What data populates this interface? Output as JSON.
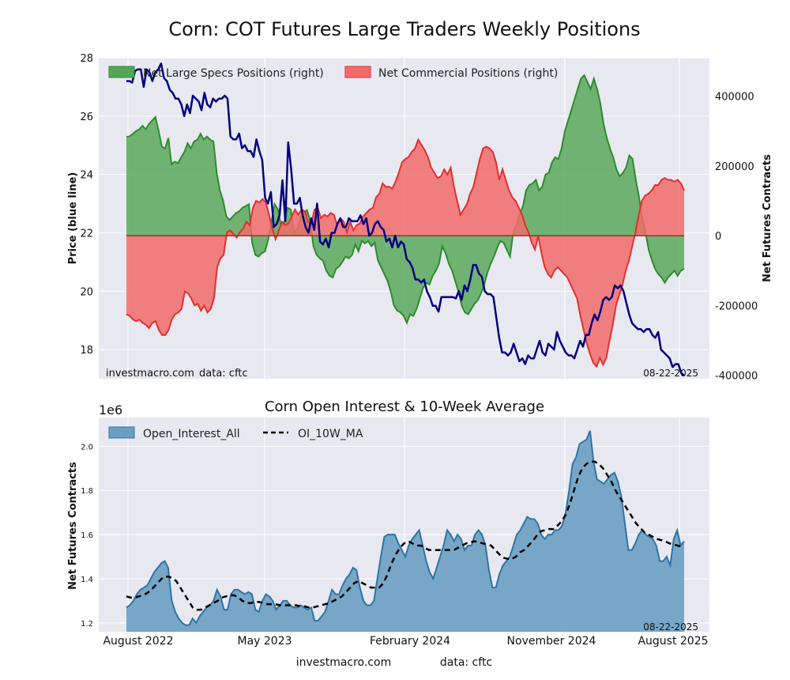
{
  "figure": {
    "title": "Corn: COT Futures Large Traders Weekly Positions",
    "footer_left": "investmacro.com",
    "footer_right": "data: cftc",
    "x_tick_labels": [
      "August 2022",
      "May 2023",
      "February 2024",
      "November 2024",
      "August 2025"
    ]
  },
  "colors": {
    "background": "#e8e8f0",
    "grid": "#ffffff",
    "specs_fill": "#56a656",
    "specs_line": "#2e8b2e",
    "commercial_fill": "#f26b6b",
    "commercial_line": "#e0302f",
    "price_line": "#000080",
    "oi_fill": "#6a9ec2",
    "oi_line": "#2f74a6",
    "ma_line": "#000000"
  },
  "chart_data": [
    {
      "type": "area",
      "title": "Corn: COT Futures Large Traders Weekly Positions",
      "ylabel_left": "Price (blue line)",
      "ylabel_right": "Net Futures Contracts",
      "ylim_left": [
        17.0,
        28.0
      ],
      "ylim_right": [
        -410000,
        510000
      ],
      "left_ticks": [
        "18",
        "20",
        "22",
        "24",
        "26",
        "28"
      ],
      "right_ticks": [
        "-400000",
        "-200000",
        "0",
        "200000",
        "400000"
      ],
      "legend_position": "top-left",
      "watermark_left": "investmacro.com",
      "watermark_data": "data: cftc",
      "date_label": "08-22-2025",
      "x_range": [
        "2022-07-26",
        "2025-08-19"
      ],
      "series": [
        {
          "name": "Net Large Specs Positions (right)",
          "style": "area",
          "values": [
            283000,
            285000,
            292000,
            300000,
            305000,
            315000,
            305000,
            320000,
            330000,
            340000,
            300000,
            255000,
            250000,
            280000,
            205000,
            212000,
            208000,
            225000,
            240000,
            265000,
            250000,
            270000,
            275000,
            292000,
            275000,
            284000,
            275000,
            270000,
            180000,
            130000,
            100000,
            55000,
            45000,
            55000,
            65000,
            70000,
            80000,
            85000,
            90000,
            -20000,
            -55000,
            -60000,
            -50000,
            -45000,
            -10000,
            40000,
            90000,
            75000,
            25000,
            40000,
            80000,
            75000,
            8000,
            20000,
            50000,
            65000,
            73000,
            45000,
            -30000,
            -55000,
            -65000,
            -72000,
            -100000,
            -115000,
            -120000,
            -95000,
            -88000,
            -75000,
            -60000,
            -65000,
            -55000,
            -25000,
            -45000,
            -15000,
            -22000,
            -15000,
            -30000,
            -20000,
            -70000,
            -90000,
            -110000,
            -130000,
            -160000,
            -200000,
            -215000,
            -220000,
            -230000,
            -250000,
            -225000,
            -230000,
            -210000,
            -180000,
            -150000,
            -135000,
            -140000,
            -115000,
            -100000,
            -80000,
            -30000,
            -50000,
            -80000,
            -100000,
            -130000,
            -160000,
            -200000,
            -220000,
            -225000,
            -210000,
            -195000,
            -185000,
            -165000,
            -140000,
            -105000,
            -80000,
            -60000,
            -35000,
            -15000,
            -20000,
            -40000,
            -60000,
            10000,
            30000,
            60000,
            85000,
            130000,
            145000,
            150000,
            160000,
            130000,
            140000,
            175000,
            180000,
            210000,
            225000,
            220000,
            250000,
            300000,
            330000,
            360000,
            390000,
            420000,
            450000,
            460000,
            440000,
            420000,
            450000,
            420000,
            380000,
            320000,
            280000,
            250000,
            225000,
            190000,
            170000,
            180000,
            195000,
            230000,
            220000,
            160000,
            110000,
            50000,
            10000,
            -40000,
            -70000,
            -95000,
            -110000,
            -120000,
            -135000,
            -120000,
            -110000,
            -100000,
            -115000,
            -100000,
            -95000
          ]
        },
        {
          "name": "Net Commercial Positions (right)",
          "style": "area",
          "values": [
            -225000,
            -230000,
            -240000,
            -245000,
            -240000,
            -250000,
            -255000,
            -265000,
            -250000,
            -245000,
            -270000,
            -285000,
            -285000,
            -270000,
            -240000,
            -225000,
            -220000,
            -210000,
            -160000,
            -165000,
            -180000,
            -200000,
            -195000,
            -215000,
            -200000,
            -220000,
            -210000,
            -180000,
            -90000,
            -65000,
            -55000,
            10000,
            15000,
            5000,
            -5000,
            10000,
            20000,
            40000,
            30000,
            80000,
            100000,
            95000,
            105000,
            95000,
            60000,
            20000,
            -10000,
            15000,
            40000,
            30000,
            35000,
            55000,
            75000,
            60000,
            75000,
            70000,
            40000,
            35000,
            75000,
            80000,
            50000,
            60000,
            55000,
            65000,
            60000,
            30000,
            50000,
            40000,
            10000,
            40000,
            15000,
            30000,
            35000,
            55000,
            65000,
            75000,
            80000,
            110000,
            120000,
            150000,
            140000,
            140000,
            135000,
            155000,
            180000,
            210000,
            220000,
            225000,
            240000,
            250000,
            275000,
            260000,
            245000,
            225000,
            195000,
            180000,
            165000,
            170000,
            190000,
            175000,
            195000,
            140000,
            100000,
            60000,
            75000,
            90000,
            120000,
            140000,
            180000,
            220000,
            250000,
            255000,
            250000,
            240000,
            210000,
            160000,
            190000,
            160000,
            130000,
            110000,
            100000,
            80000,
            60000,
            30000,
            10000,
            -20000,
            -40000,
            0,
            -50000,
            -90000,
            -110000,
            -120000,
            -100000,
            -90000,
            -100000,
            -110000,
            -120000,
            -140000,
            -160000,
            -180000,
            -230000,
            -270000,
            -310000,
            -340000,
            -365000,
            -375000,
            -350000,
            -370000,
            -350000,
            -300000,
            -255000,
            -200000,
            -170000,
            -140000,
            -100000,
            -70000,
            -30000,
            10000,
            60000,
            100000,
            115000,
            120000,
            130000,
            145000,
            145000,
            160000,
            165000,
            160000,
            160000,
            155000,
            160000,
            150000,
            130000
          ]
        },
        {
          "name": "Price",
          "axis": "left",
          "style": "line",
          "values": [
            27.2,
            27.2,
            27.15,
            27.55,
            27.6,
            27.6,
            27.0,
            27.6,
            27.5,
            27.2,
            27.5,
            27.6,
            27.8,
            27.3,
            27.2,
            26.9,
            26.8,
            26.6,
            26.6,
            26.4,
            26.0,
            26.4,
            26.1,
            26.7,
            26.6,
            26.5,
            26.2,
            26.8,
            26.4,
            26.3,
            26.6,
            26.5,
            26.6,
            26.6,
            26.7,
            26.6,
            25.3,
            25.2,
            25.2,
            25.4,
            24.9,
            25.0,
            24.8,
            24.8,
            24.6,
            25.2,
            24.8,
            24.5,
            23.2,
            23.0,
            23.4,
            22.2,
            22.3,
            22.6,
            23.8,
            22.4,
            25.1,
            24.2,
            23.0,
            23.0,
            23.2,
            22.6,
            22.2,
            22.0,
            22.5,
            22.1,
            23.0,
            21.7,
            21.6,
            21.8,
            21.5,
            22.0,
            22.0,
            22.3,
            22.5,
            22.2,
            22.2,
            22.5,
            22.4,
            22.4,
            22.4,
            22.6,
            22.3,
            22.5,
            21.9,
            22.0,
            22.3,
            22.4,
            22.2,
            22.1,
            21.7,
            21.8,
            21.5,
            21.9,
            21.5,
            21.7,
            21.6,
            21.1,
            21.0,
            20.8,
            20.4,
            20.4,
            20.3,
            20.4,
            20.0,
            19.8,
            19.5,
            19.5,
            19.3,
            19.8,
            19.8,
            19.8,
            19.8,
            19.8,
            19.75,
            20.0,
            19.7,
            20.2,
            20.0,
            20.4,
            20.9,
            20.9,
            20.6,
            20.5,
            20.0,
            19.9,
            19.9,
            19.8,
            19.1,
            18.4,
            17.9,
            17.9,
            17.8,
            17.9,
            18.2,
            17.9,
            17.6,
            17.7,
            17.5,
            17.8,
            17.7,
            17.7,
            18.0,
            18.3,
            17.9,
            17.8,
            18.2,
            18.1,
            18.0,
            18.6,
            18.3,
            18.1,
            17.9,
            17.8,
            17.8,
            17.7,
            18.0,
            18.3,
            18.1,
            18.5,
            18.5,
            18.9,
            19.2,
            19.0,
            19.3,
            19.7,
            19.8,
            19.7,
            19.8,
            20.2,
            20.1,
            20.2,
            20.0,
            19.6,
            19.2,
            18.9,
            18.8,
            18.7,
            18.7,
            18.6,
            18.7,
            18.7,
            18.5,
            18.4,
            18.6,
            18.0,
            17.9,
            17.8,
            17.7,
            17.4,
            17.5,
            17.5,
            17.2,
            17.1
          ]
        }
      ]
    },
    {
      "type": "area",
      "title": "Corn Open Interest & 10-Week Average",
      "ylabel": "Net Futures Contracts",
      "y_multiplier": "1e6",
      "ylim": [
        1.16,
        2.13
      ],
      "y_ticks": [
        "1.2",
        "1.4",
        "1.6",
        "1.8",
        "2.0"
      ],
      "legend_position": "top-left",
      "date_label": "08-22-2025",
      "x_range": [
        "2022-07-26",
        "2025-08-19"
      ],
      "series": [
        {
          "name": "Open_Interest_All",
          "style": "area",
          "values": [
            1.27,
            1.28,
            1.3,
            1.33,
            1.35,
            1.36,
            1.37,
            1.4,
            1.43,
            1.45,
            1.47,
            1.48,
            1.45,
            1.3,
            1.25,
            1.22,
            1.2,
            1.19,
            1.19,
            1.22,
            1.2,
            1.23,
            1.25,
            1.27,
            1.28,
            1.3,
            1.35,
            1.32,
            1.26,
            1.26,
            1.33,
            1.35,
            1.35,
            1.34,
            1.33,
            1.34,
            1.33,
            1.26,
            1.25,
            1.3,
            1.33,
            1.32,
            1.3,
            1.26,
            1.28,
            1.3,
            1.3,
            1.28,
            1.27,
            1.27,
            1.28,
            1.27,
            1.26,
            1.27,
            1.21,
            1.21,
            1.23,
            1.25,
            1.3,
            1.35,
            1.33,
            1.33,
            1.37,
            1.4,
            1.42,
            1.45,
            1.44,
            1.36,
            1.3,
            1.28,
            1.28,
            1.3,
            1.4,
            1.5,
            1.59,
            1.6,
            1.6,
            1.6,
            1.56,
            1.53,
            1.5,
            1.55,
            1.58,
            1.6,
            1.62,
            1.55,
            1.48,
            1.43,
            1.4,
            1.45,
            1.5,
            1.55,
            1.62,
            1.6,
            1.57,
            1.6,
            1.58,
            1.53,
            1.55,
            1.55,
            1.6,
            1.62,
            1.6,
            1.55,
            1.44,
            1.36,
            1.36,
            1.42,
            1.46,
            1.48,
            1.5,
            1.55,
            1.6,
            1.62,
            1.65,
            1.68,
            1.67,
            1.67,
            1.65,
            1.6,
            1.58,
            1.6,
            1.6,
            1.62,
            1.62,
            1.64,
            1.7,
            1.8,
            1.92,
            1.95,
            2.01,
            2.02,
            2.03,
            2.07,
            1.93,
            1.85,
            1.84,
            1.83,
            1.85,
            1.87,
            1.88,
            1.84,
            1.77,
            1.65,
            1.53,
            1.53,
            1.56,
            1.6,
            1.62,
            1.6,
            1.59,
            1.58,
            1.55,
            1.48,
            1.48,
            1.5,
            1.46,
            1.58,
            1.62,
            1.55,
            1.57
          ]
        },
        {
          "name": "OI_10W_MA",
          "style": "dashed-line",
          "values": [
            1.32,
            1.315,
            1.315,
            1.32,
            1.325,
            1.335,
            1.35,
            1.37,
            1.39,
            1.41,
            1.41,
            1.405,
            1.39,
            1.36,
            1.33,
            1.3,
            1.27,
            1.26,
            1.26,
            1.27,
            1.28,
            1.29,
            1.3,
            1.315,
            1.32,
            1.325,
            1.325,
            1.315,
            1.3,
            1.29,
            1.29,
            1.295,
            1.295,
            1.29,
            1.285,
            1.285,
            1.285,
            1.28,
            1.28,
            1.28,
            1.28,
            1.28,
            1.275,
            1.275,
            1.27,
            1.27,
            1.275,
            1.28,
            1.285,
            1.29,
            1.3,
            1.31,
            1.32,
            1.34,
            1.36,
            1.38,
            1.39,
            1.38,
            1.37,
            1.36,
            1.36,
            1.36,
            1.38,
            1.42,
            1.47,
            1.51,
            1.54,
            1.56,
            1.57,
            1.56,
            1.55,
            1.55,
            1.54,
            1.53,
            1.53,
            1.53,
            1.53,
            1.53,
            1.53,
            1.53,
            1.54,
            1.55,
            1.56,
            1.565,
            1.57,
            1.565,
            1.56,
            1.555,
            1.55,
            1.53,
            1.51,
            1.495,
            1.49,
            1.49,
            1.5,
            1.52,
            1.53,
            1.55,
            1.57,
            1.595,
            1.615,
            1.62,
            1.625,
            1.625,
            1.64,
            1.66,
            1.69,
            1.74,
            1.8,
            1.86,
            1.9,
            1.92,
            1.93,
            1.93,
            1.92,
            1.9,
            1.87,
            1.84,
            1.8,
            1.77,
            1.74,
            1.71,
            1.68,
            1.65,
            1.63,
            1.61,
            1.6,
            1.59,
            1.58,
            1.575,
            1.57,
            1.56,
            1.555,
            1.55,
            1.545
          ]
        }
      ]
    }
  ]
}
